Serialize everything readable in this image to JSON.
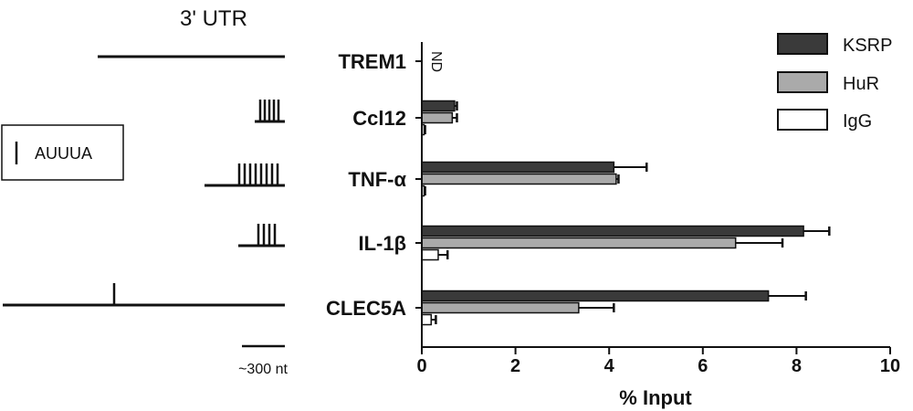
{
  "utr_panel": {
    "title": "3' UTR",
    "key_label": "AUUUA",
    "scale_label": "~300 nt",
    "genes": [
      {
        "name": "TREM1",
        "motif_count": 0
      },
      {
        "name": "Ccl12",
        "motif_count": 5
      },
      {
        "name": "TNF-α",
        "motif_count": 8
      },
      {
        "name": "IL-1β",
        "motif_count": 4
      },
      {
        "name": "CLEC5A",
        "motif_count": 1
      }
    ]
  },
  "chart_data": {
    "type": "bar",
    "orientation": "horizontal",
    "title": "",
    "xlabel": "% Input",
    "ylabel": "",
    "xlim": [
      0,
      10
    ],
    "x_ticks": [
      "0",
      "2",
      "4",
      "6",
      "8",
      "10"
    ],
    "categories": [
      "TREM1",
      "Ccl12",
      "TNF-α",
      "IL-1β",
      "CLEC5A"
    ],
    "series": [
      {
        "name": "KSRP",
        "values": [
          null,
          0.7,
          4.1,
          8.15,
          7.4
        ],
        "errors": [
          null,
          0.05,
          0.7,
          0.55,
          0.8
        ],
        "color": "#3a3a3a"
      },
      {
        "name": "HuR",
        "values": [
          null,
          0.65,
          4.15,
          6.7,
          3.35
        ],
        "errors": [
          null,
          0.1,
          0.05,
          1.0,
          0.75
        ],
        "color": "#aaaaaa"
      },
      {
        "name": "IgG",
        "values": [
          null,
          0.05,
          0.05,
          0.35,
          0.2
        ],
        "errors": [
          null,
          0.02,
          0.02,
          0.2,
          0.1
        ],
        "color": "#ffffff"
      }
    ],
    "annotations": [
      {
        "category": "TREM1",
        "text": "ND"
      }
    ],
    "legend_position": "top-right",
    "grid": false
  }
}
